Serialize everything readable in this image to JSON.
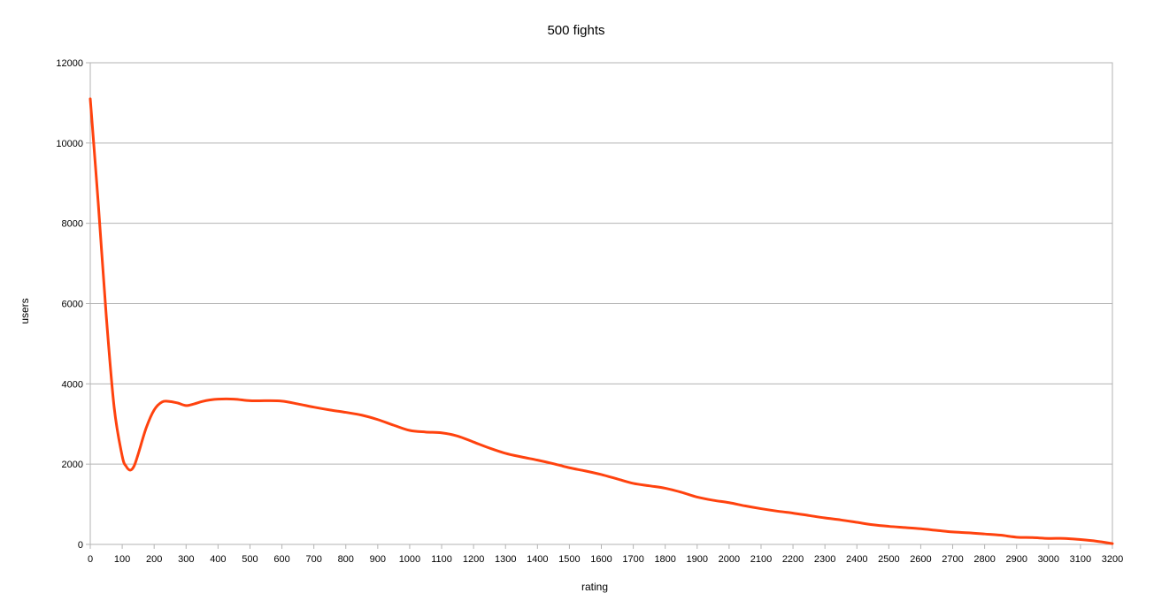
{
  "chart_data": {
    "type": "line",
    "title": "500 fights",
    "xlabel": "rating",
    "ylabel": "users",
    "xlim": [
      0,
      3200
    ],
    "ylim": [
      0,
      12000
    ],
    "x_ticks": [
      0,
      100,
      200,
      300,
      400,
      500,
      600,
      700,
      800,
      900,
      1000,
      1100,
      1200,
      1300,
      1400,
      1500,
      1600,
      1700,
      1800,
      1900,
      2000,
      2100,
      2200,
      2300,
      2400,
      2500,
      2600,
      2700,
      2800,
      2900,
      3000,
      3100,
      3200
    ],
    "y_ticks": [
      0,
      2000,
      4000,
      6000,
      8000,
      10000,
      12000
    ],
    "grid": "horizontal",
    "legend": "none",
    "series_color": "#ff420e",
    "series": [
      {
        "x": [
          0,
          25,
          50,
          75,
          100,
          112,
          125,
          137,
          150,
          175,
          200,
          225,
          250,
          275,
          300,
          325,
          350,
          375,
          400,
          450,
          500,
          550,
          600,
          650,
          700,
          750,
          800,
          850,
          900,
          950,
          1000,
          1050,
          1100,
          1150,
          1200,
          1250,
          1300,
          1350,
          1400,
          1450,
          1500,
          1550,
          1600,
          1650,
          1700,
          1750,
          1800,
          1850,
          1900,
          1950,
          2000,
          2050,
          2100,
          2150,
          2200,
          2250,
          2300,
          2350,
          2400,
          2450,
          2500,
          2550,
          2600,
          2650,
          2700,
          2750,
          2800,
          2850,
          2900,
          2950,
          3000,
          3050,
          3100,
          3150,
          3200
        ],
        "y": [
          11100,
          8500,
          5700,
          3400,
          2200,
          1950,
          1850,
          1950,
          2250,
          2900,
          3350,
          3550,
          3560,
          3520,
          3460,
          3500,
          3560,
          3600,
          3620,
          3620,
          3580,
          3580,
          3570,
          3500,
          3420,
          3350,
          3290,
          3220,
          3110,
          2970,
          2840,
          2800,
          2780,
          2700,
          2550,
          2400,
          2270,
          2180,
          2100,
          2010,
          1910,
          1830,
          1740,
          1630,
          1520,
          1460,
          1400,
          1300,
          1180,
          1100,
          1040,
          960,
          890,
          830,
          780,
          720,
          660,
          610,
          550,
          490,
          450,
          420,
          390,
          350,
          310,
          290,
          260,
          230,
          180,
          170,
          150,
          150,
          120,
          80,
          20
        ]
      }
    ]
  }
}
